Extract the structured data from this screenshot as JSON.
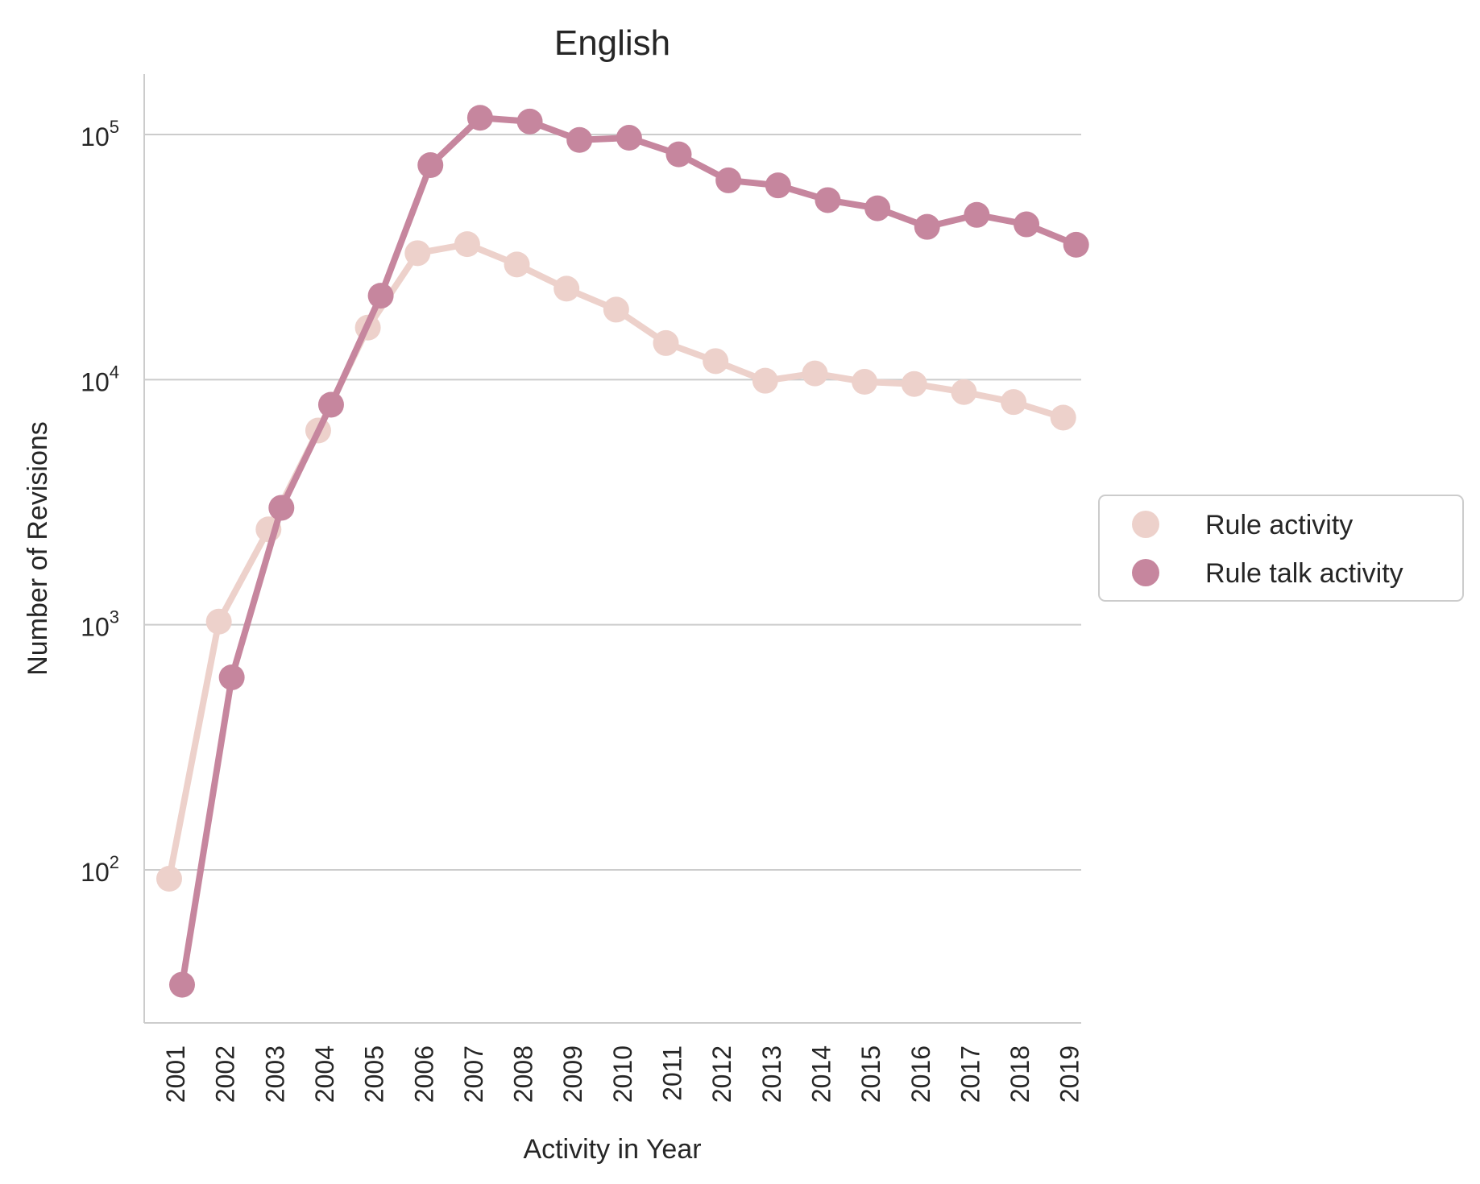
{
  "chart_data": {
    "type": "line",
    "title": "English",
    "xlabel": "Activity in Year",
    "ylabel": "Number of Revisions",
    "y_scale": "log",
    "ylim": [
      22,
      180000
    ],
    "grid": "horizontal",
    "legend_position": "right",
    "categories": [
      "2001",
      "2002",
      "2003",
      "2004",
      "2005",
      "2006",
      "2007",
      "2008",
      "2009",
      "2010",
      "2011",
      "2012",
      "2013",
      "2014",
      "2015",
      "2016",
      "2017",
      "2018",
      "2019"
    ],
    "y_ticks": [
      {
        "value": 100,
        "base": "10",
        "exp": "2"
      },
      {
        "value": 1000,
        "base": "10",
        "exp": "3"
      },
      {
        "value": 10000,
        "base": "10",
        "exp": "4"
      },
      {
        "value": 100000,
        "base": "10",
        "exp": "5"
      }
    ],
    "series": [
      {
        "name": "Rule activity",
        "color": "#edd1cb",
        "values": [
          92,
          1030,
          2450,
          6200,
          16300,
          32800,
          35700,
          29500,
          23500,
          19300,
          14100,
          11900,
          9900,
          10600,
          9800,
          9600,
          8900,
          8100,
          7000
        ]
      },
      {
        "name": "Rule talk activity",
        "color": "#c6869e",
        "values": [
          34,
          610,
          3000,
          7900,
          22000,
          75000,
          117000,
          113000,
          95000,
          97000,
          83000,
          65000,
          62000,
          54000,
          50000,
          42000,
          47000,
          43000,
          35500
        ]
      }
    ]
  }
}
